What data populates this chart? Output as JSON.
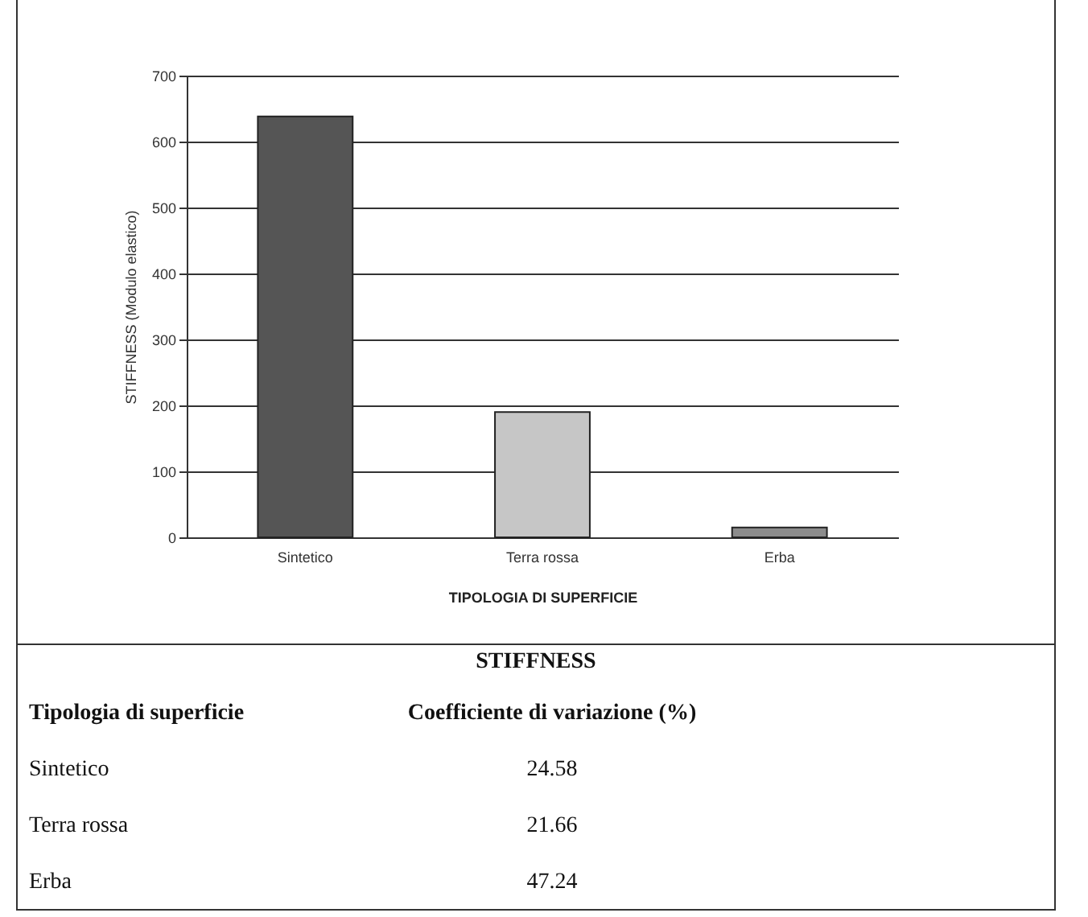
{
  "chart_data": {
    "type": "bar",
    "xlabel": "TIPOLOGIA DI SUPERFICIE",
    "ylabel": "STIFFNESS (Modulo elastico)",
    "categories": [
      "Sintetico",
      "Terra rossa",
      "Erba"
    ],
    "values": [
      638,
      190,
      15
    ],
    "colors": [
      "#555555",
      "#c6c6c6",
      "#8c8c8c"
    ],
    "ylim": [
      0,
      700
    ],
    "yticks": [
      0,
      100,
      200,
      300,
      400,
      500,
      600,
      700
    ],
    "grid": "y",
    "annotations": [
      "STIFFNESS",
      "Tipologia di superficie",
      "Coefficiente di variazione (%)",
      "Sintetico",
      "24.58",
      "Terra rossa",
      "21.66",
      "Erba",
      "47.24"
    ]
  }
}
